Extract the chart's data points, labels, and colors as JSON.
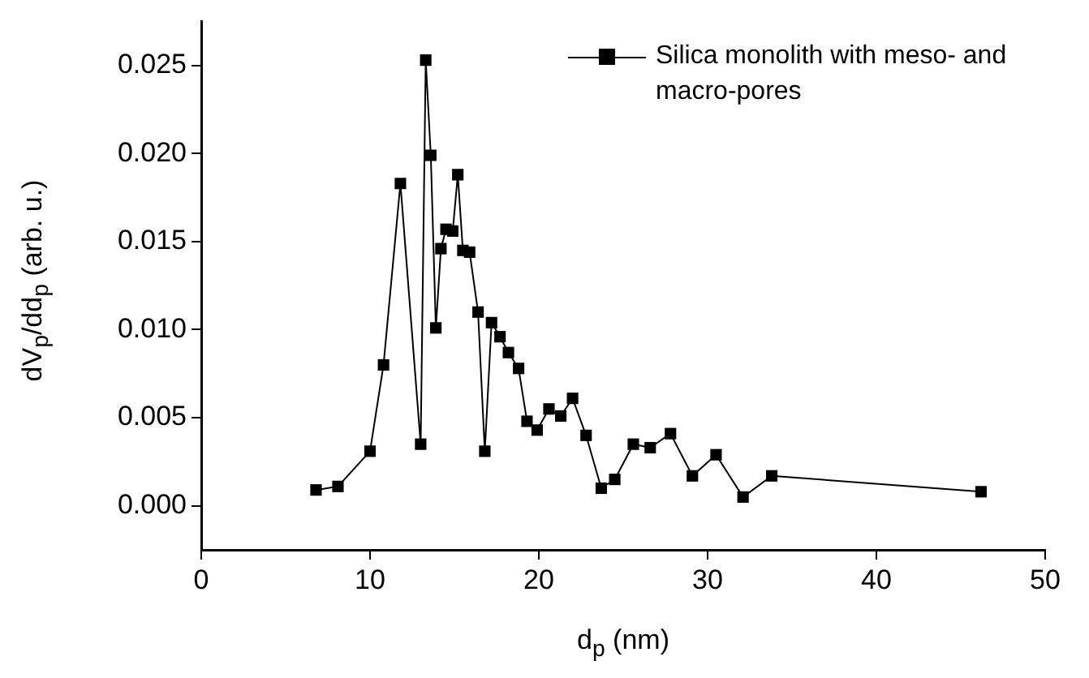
{
  "chart_data": {
    "type": "line",
    "xlabel": "d$_{p}$ (nm)",
    "ylabel": "dV$_{p}$/dd$_{p}$ (arb. u.)",
    "x": [
      6.8,
      8.1,
      10.0,
      10.8,
      11.8,
      13.0,
      13.3,
      13.6,
      13.9,
      14.2,
      14.5,
      14.9,
      15.2,
      15.5,
      15.9,
      16.4,
      16.8,
      17.2,
      17.7,
      18.2,
      18.8,
      19.3,
      19.9,
      20.6,
      21.3,
      22.0,
      22.8,
      23.7,
      24.5,
      25.6,
      26.6,
      27.8,
      29.1,
      30.5,
      32.1,
      33.8,
      46.2
    ],
    "series": [
      {
        "name": "Silica monolith with meso- and macro-pores",
        "color": "#000000",
        "values": [
          0.0009,
          0.0011,
          0.0031,
          0.008,
          0.0183,
          0.0035,
          0.0253,
          0.0199,
          0.0101,
          0.0146,
          0.0157,
          0.0156,
          0.0188,
          0.0145,
          0.0144,
          0.011,
          0.0031,
          0.0104,
          0.0096,
          0.0087,
          0.0078,
          0.0048,
          0.0043,
          0.0055,
          0.0051,
          0.0061,
          0.004,
          0.001,
          0.0015,
          0.0035,
          0.0033,
          0.0041,
          0.0017,
          0.0029,
          0.0005,
          0.0017,
          0.0008
        ]
      }
    ],
    "xlim": [
      0,
      50
    ],
    "xticks": [
      0,
      10,
      20,
      30,
      40,
      50
    ],
    "ylim": [
      -0.0025,
      0.0275
    ],
    "yticks": [
      {
        "value": 0,
        "label": "0.000"
      },
      {
        "value": 0.005,
        "label": "0.005"
      },
      {
        "value": 0.01,
        "label": "0.010"
      },
      {
        "value": 0.015,
        "label": "0.015"
      },
      {
        "value": 0.02,
        "label": "0.020"
      },
      {
        "value": 0.025,
        "label": "0.025"
      }
    ],
    "marker": "square",
    "line_style": "solid",
    "grid": false,
    "legend": "top right"
  }
}
